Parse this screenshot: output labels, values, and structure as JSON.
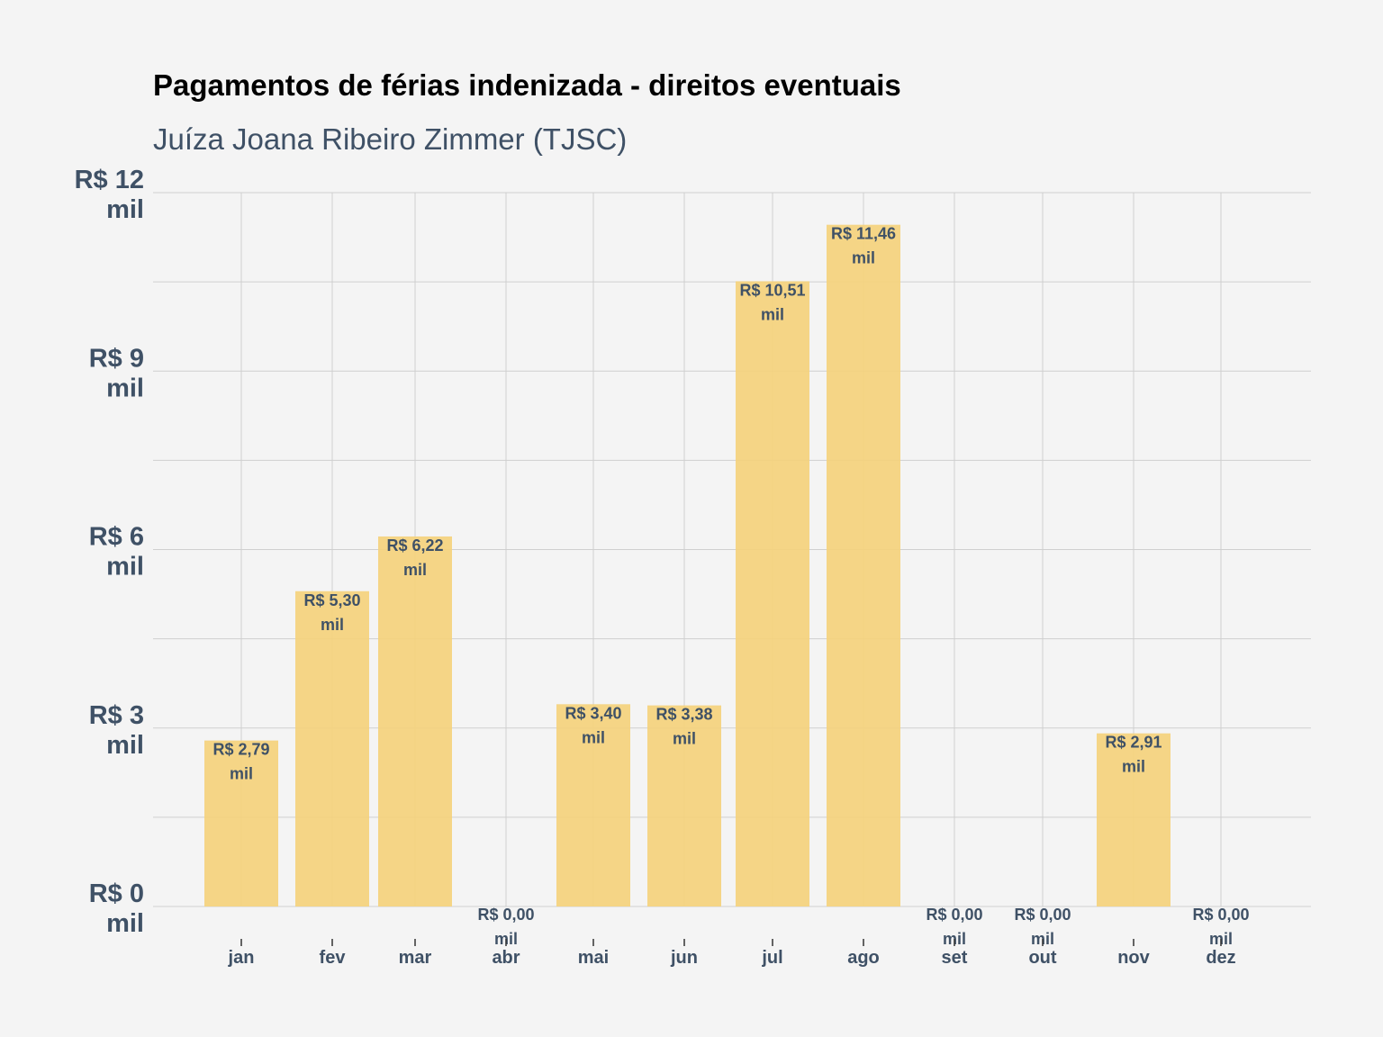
{
  "chart_data": {
    "type": "bar",
    "title": "Pagamentos de férias indenizada - direitos eventuais",
    "subtitle": "Juíza Joana Ribeiro Zimmer (TJSC)",
    "xlabel": "",
    "ylabel": "",
    "categories": [
      "jan",
      "fev",
      "mar",
      "abr",
      "mai",
      "jun",
      "jul",
      "ago",
      "set",
      "out",
      "nov",
      "dez"
    ],
    "values": [
      2.79,
      5.3,
      6.22,
      0.0,
      3.4,
      3.38,
      10.51,
      11.46,
      0.0,
      0.0,
      2.91,
      0.0
    ],
    "data_labels": [
      [
        "R$ 2,79",
        "mil"
      ],
      [
        "R$ 5,30",
        "mil"
      ],
      [
        "R$ 6,22",
        "mil"
      ],
      [
        "R$ 0,00",
        "mil"
      ],
      [
        "R$ 3,40",
        "mil"
      ],
      [
        "R$ 3,38",
        "mil"
      ],
      [
        "R$ 10,51",
        "mil"
      ],
      [
        "R$ 11,46",
        "mil"
      ],
      [
        "R$ 0,00",
        "mil"
      ],
      [
        "R$ 0,00",
        "mil"
      ],
      [
        "R$ 2,91",
        "mil"
      ],
      [
        "R$ 0,00",
        "mil"
      ]
    ],
    "yticks": [
      {
        "value": 0,
        "label": [
          "R$ 0",
          "mil"
        ]
      },
      {
        "value": 3,
        "label": [
          "R$ 3",
          "mil"
        ]
      },
      {
        "value": 6,
        "label": [
          "R$ 6",
          "mil"
        ]
      },
      {
        "value": 9,
        "label": [
          "R$ 9",
          "mil"
        ]
      },
      {
        "value": 12,
        "label": [
          "R$ 12",
          "mil"
        ]
      }
    ],
    "ylim": [
      0,
      12
    ],
    "minor_grid_step": 1.5,
    "grid": true,
    "legend": "none",
    "colors": {
      "bar": "#f5d27a",
      "background": "#f4f4f4",
      "grid": "#cfcfcf",
      "text": "#3f5166",
      "title": "#000000"
    }
  }
}
